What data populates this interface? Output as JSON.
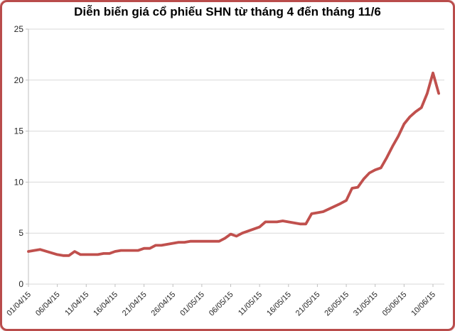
{
  "window": {
    "title": "Diễn biến giá cổ phiếu SHN từ tháng 4 đến tháng 11/6"
  },
  "colors": {
    "line": "#c0504d",
    "border": "#b94c4b",
    "gridline": "#d9d9d9",
    "axis": "#bfbfbf",
    "tick_label": "#262626",
    "title_text": "#000000",
    "background": "#ffffff"
  },
  "chart_data": {
    "type": "line",
    "title": "Diễn biến giá cổ phiếu SHN từ tháng 4 đến tháng 11/6",
    "xlabel": "",
    "ylabel": "",
    "ylim": [
      0,
      25
    ],
    "y_ticks": [
      0,
      5,
      10,
      15,
      20,
      25
    ],
    "grid": "horizontal",
    "legend": "none",
    "x_tick_labels": [
      "01/04/15",
      "06/04/15",
      "11/04/15",
      "16/04/15",
      "21/04/15",
      "26/04/15",
      "01/05/15",
      "06/05/15",
      "11/05/15",
      "16/05/15",
      "21/05/15",
      "26/05/15",
      "31/05/15",
      "05/06/15",
      "10/06/15"
    ],
    "series": [
      {
        "name": "SHN",
        "color": "#c0504d",
        "points": [
          {
            "date": "01/04/15",
            "value": 3.2
          },
          {
            "date": "02/04/15",
            "value": 3.3
          },
          {
            "date": "03/04/15",
            "value": 3.4
          },
          {
            "date": "06/04/15",
            "value": 2.9
          },
          {
            "date": "07/04/15",
            "value": 2.8
          },
          {
            "date": "08/04/15",
            "value": 2.8
          },
          {
            "date": "09/04/15",
            "value": 3.2
          },
          {
            "date": "10/04/15",
            "value": 2.9
          },
          {
            "date": "13/04/15",
            "value": 2.9
          },
          {
            "date": "14/04/15",
            "value": 3.0
          },
          {
            "date": "15/04/15",
            "value": 3.0
          },
          {
            "date": "16/04/15",
            "value": 3.2
          },
          {
            "date": "17/04/15",
            "value": 3.3
          },
          {
            "date": "20/04/15",
            "value": 3.3
          },
          {
            "date": "21/04/15",
            "value": 3.5
          },
          {
            "date": "22/04/15",
            "value": 3.5
          },
          {
            "date": "23/04/15",
            "value": 3.8
          },
          {
            "date": "24/04/15",
            "value": 3.8
          },
          {
            "date": "27/04/15",
            "value": 4.1
          },
          {
            "date": "28/04/15",
            "value": 4.1
          },
          {
            "date": "29/04/15",
            "value": 4.2
          },
          {
            "date": "04/05/15",
            "value": 4.2
          },
          {
            "date": "05/05/15",
            "value": 4.5
          },
          {
            "date": "06/05/15",
            "value": 4.9
          },
          {
            "date": "07/05/15",
            "value": 4.7
          },
          {
            "date": "08/05/15",
            "value": 5.0
          },
          {
            "date": "11/05/15",
            "value": 5.6
          },
          {
            "date": "12/05/15",
            "value": 6.1
          },
          {
            "date": "13/05/15",
            "value": 6.1
          },
          {
            "date": "14/05/15",
            "value": 6.1
          },
          {
            "date": "15/05/15",
            "value": 6.2
          },
          {
            "date": "18/05/15",
            "value": 5.9
          },
          {
            "date": "19/05/15",
            "value": 5.9
          },
          {
            "date": "20/05/15",
            "value": 6.9
          },
          {
            "date": "21/05/15",
            "value": 7.0
          },
          {
            "date": "22/05/15",
            "value": 7.1
          },
          {
            "date": "25/05/15",
            "value": 7.9
          },
          {
            "date": "26/05/15",
            "value": 8.2
          },
          {
            "date": "27/05/15",
            "value": 9.4
          },
          {
            "date": "28/05/15",
            "value": 9.5
          },
          {
            "date": "29/05/15",
            "value": 10.3
          },
          {
            "date": "30/05/15",
            "value": 10.9
          },
          {
            "date": "31/05/15",
            "value": 11.2
          },
          {
            "date": "01/06/15",
            "value": 11.4
          },
          {
            "date": "02/06/15",
            "value": 12.4
          },
          {
            "date": "03/06/15",
            "value": 13.5
          },
          {
            "date": "04/06/15",
            "value": 14.5
          },
          {
            "date": "05/06/15",
            "value": 15.7
          },
          {
            "date": "06/06/15",
            "value": 16.4
          },
          {
            "date": "07/06/15",
            "value": 16.9
          },
          {
            "date": "08/06/15",
            "value": 17.3
          },
          {
            "date": "09/06/15",
            "value": 18.7
          },
          {
            "date": "10/06/15",
            "value": 20.7
          },
          {
            "date": "11/06/15",
            "value": 18.7
          }
        ]
      }
    ]
  }
}
